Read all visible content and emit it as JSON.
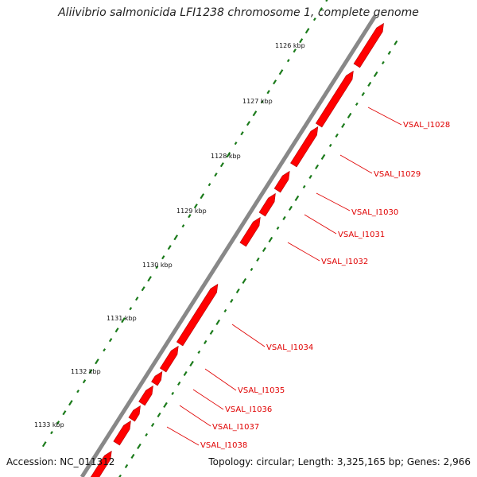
{
  "title": "Aliivibrio salmonicida LFI1238 chromosome 1, complete genome",
  "footer": {
    "accession": "Accession: NC_011312",
    "summary": "Topology: circular; Length: 3,325,165 bp; Genes: 2,966"
  },
  "colors": {
    "backbone": "#888888",
    "gene": "#ff0000",
    "gene_label": "#e00000",
    "gc_marks": "#1a7a1a",
    "leader": "#e00000"
  },
  "scale": {
    "ticks": [
      "1126 kbp",
      "1127 kbp",
      "1128 kbp",
      "1129 kbp",
      "1130 kbp",
      "1131 kbp",
      "1132 kbp",
      "1133 kbp"
    ]
  },
  "genes": [
    "VSAL_I1028",
    "VSAL_I1029",
    "VSAL_I1030",
    "VSAL_I1031",
    "VSAL_I1032",
    "VSAL_I1034",
    "VSAL_I1035",
    "VSAL_I1036",
    "VSAL_I1037",
    "VSAL_I1038"
  ]
}
